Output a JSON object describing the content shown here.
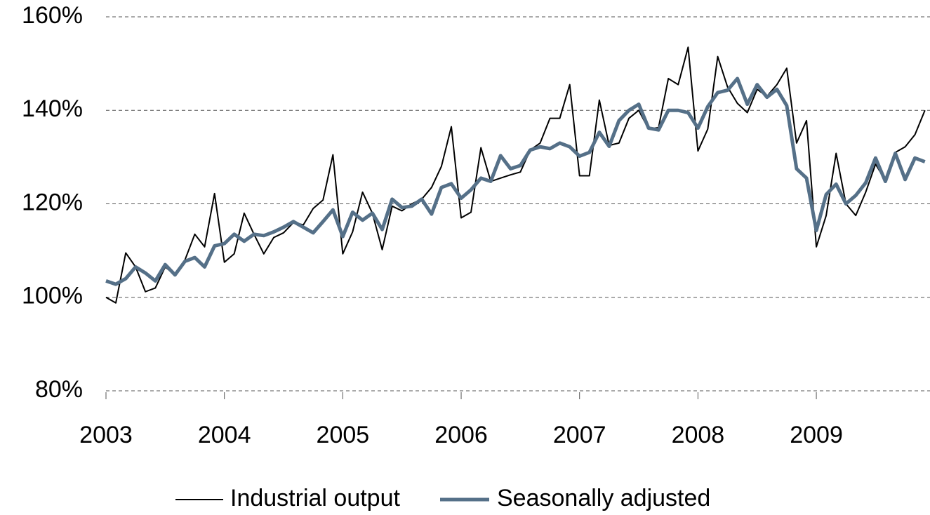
{
  "chart_data": {
    "type": "line",
    "x": [
      2003,
      2003.083,
      2003.167,
      2003.25,
      2003.333,
      2003.417,
      2003.5,
      2003.583,
      2003.667,
      2003.75,
      2003.833,
      2003.917,
      2004,
      2004.083,
      2004.167,
      2004.25,
      2004.333,
      2004.417,
      2004.5,
      2004.583,
      2004.667,
      2004.75,
      2004.833,
      2004.917,
      2005,
      2005.083,
      2005.167,
      2005.25,
      2005.333,
      2005.417,
      2005.5,
      2005.583,
      2005.667,
      2005.75,
      2005.833,
      2005.917,
      2006,
      2006.083,
      2006.167,
      2006.25,
      2006.333,
      2006.417,
      2006.5,
      2006.583,
      2006.667,
      2006.75,
      2006.833,
      2006.917,
      2007,
      2007.083,
      2007.167,
      2007.25,
      2007.333,
      2007.417,
      2007.5,
      2007.583,
      2007.667,
      2007.75,
      2007.833,
      2007.917,
      2008,
      2008.083,
      2008.167,
      2008.25,
      2008.333,
      2008.417,
      2008.5,
      2008.583,
      2008.667,
      2008.75,
      2008.833,
      2008.917,
      2009,
      2009.083,
      2009.167,
      2009.25,
      2009.333,
      2009.417,
      2009.5,
      2009.583,
      2009.667,
      2009.75,
      2009.833,
      2009.917
    ],
    "series": [
      {
        "name": "Industrial output",
        "color": "#000000",
        "width": 2,
        "values": [
          100,
          98.8,
          109.5,
          106.5,
          101.2,
          102,
          106.5,
          104.8,
          108,
          113.5,
          110.8,
          122.2,
          107.5,
          109.3,
          118,
          113.5,
          109.3,
          112.8,
          113.8,
          116,
          115.5,
          119,
          120.8,
          130.5,
          109.3,
          114,
          122.5,
          118,
          110.2,
          119.5,
          118.5,
          120,
          121,
          123.5,
          128,
          136.5,
          117,
          118.2,
          132,
          124.8,
          125.5,
          126.2,
          126.8,
          131.5,
          133,
          138.3,
          138.3,
          145.5,
          126,
          126,
          142.2,
          132.5,
          133,
          138.3,
          140,
          136,
          136.3,
          146.8,
          145.5,
          153.5,
          131.3,
          136,
          151.5,
          145,
          141.5,
          139.5,
          144.5,
          143,
          145.5,
          149,
          133,
          137.8,
          110.8,
          117.5,
          130.8,
          120,
          117.5,
          122.5,
          128.5,
          125,
          131,
          132.2,
          134.8,
          140
        ]
      },
      {
        "name": "Seasonally adjusted",
        "color": "#557088",
        "width": 5,
        "values": [
          103.5,
          102.8,
          104,
          106.5,
          105.2,
          103.5,
          107,
          104.8,
          107.7,
          108.5,
          106.5,
          111,
          111.5,
          113.5,
          112,
          113.5,
          113.2,
          114,
          115,
          116.2,
          115,
          113.8,
          116.2,
          118.7,
          113,
          118.2,
          116.5,
          118,
          114.5,
          121,
          119.2,
          119.5,
          121,
          117.8,
          123.5,
          124.3,
          121.2,
          123,
          125.5,
          124.8,
          130.3,
          127.5,
          128.2,
          131.5,
          132.2,
          131.8,
          133,
          132.2,
          130.2,
          131,
          135.3,
          132.3,
          137.8,
          140,
          141.3,
          136.2,
          135.8,
          140,
          140,
          139.5,
          136.2,
          140.8,
          143.8,
          144.3,
          146.8,
          141.3,
          145.5,
          142.8,
          144.5,
          141,
          127.5,
          125.5,
          114.3,
          122,
          124.2,
          120,
          121.8,
          124.5,
          129.8,
          124.8,
          130.8,
          125.2,
          129.8,
          129
        ]
      }
    ],
    "xlim": [
      2003,
      2009.96
    ],
    "xticks": [
      2003,
      2004,
      2005,
      2006,
      2007,
      2008,
      2009
    ],
    "ylim": [
      80,
      160
    ],
    "yticks": [
      {
        "value": 80,
        "label": "80%"
      },
      {
        "value": 100,
        "label": "100%"
      },
      {
        "value": 120,
        "label": "120%"
      },
      {
        "value": 140,
        "label": "140%"
      },
      {
        "value": 160,
        "label": "160%"
      }
    ],
    "grid": true,
    "legend": "bottom"
  }
}
